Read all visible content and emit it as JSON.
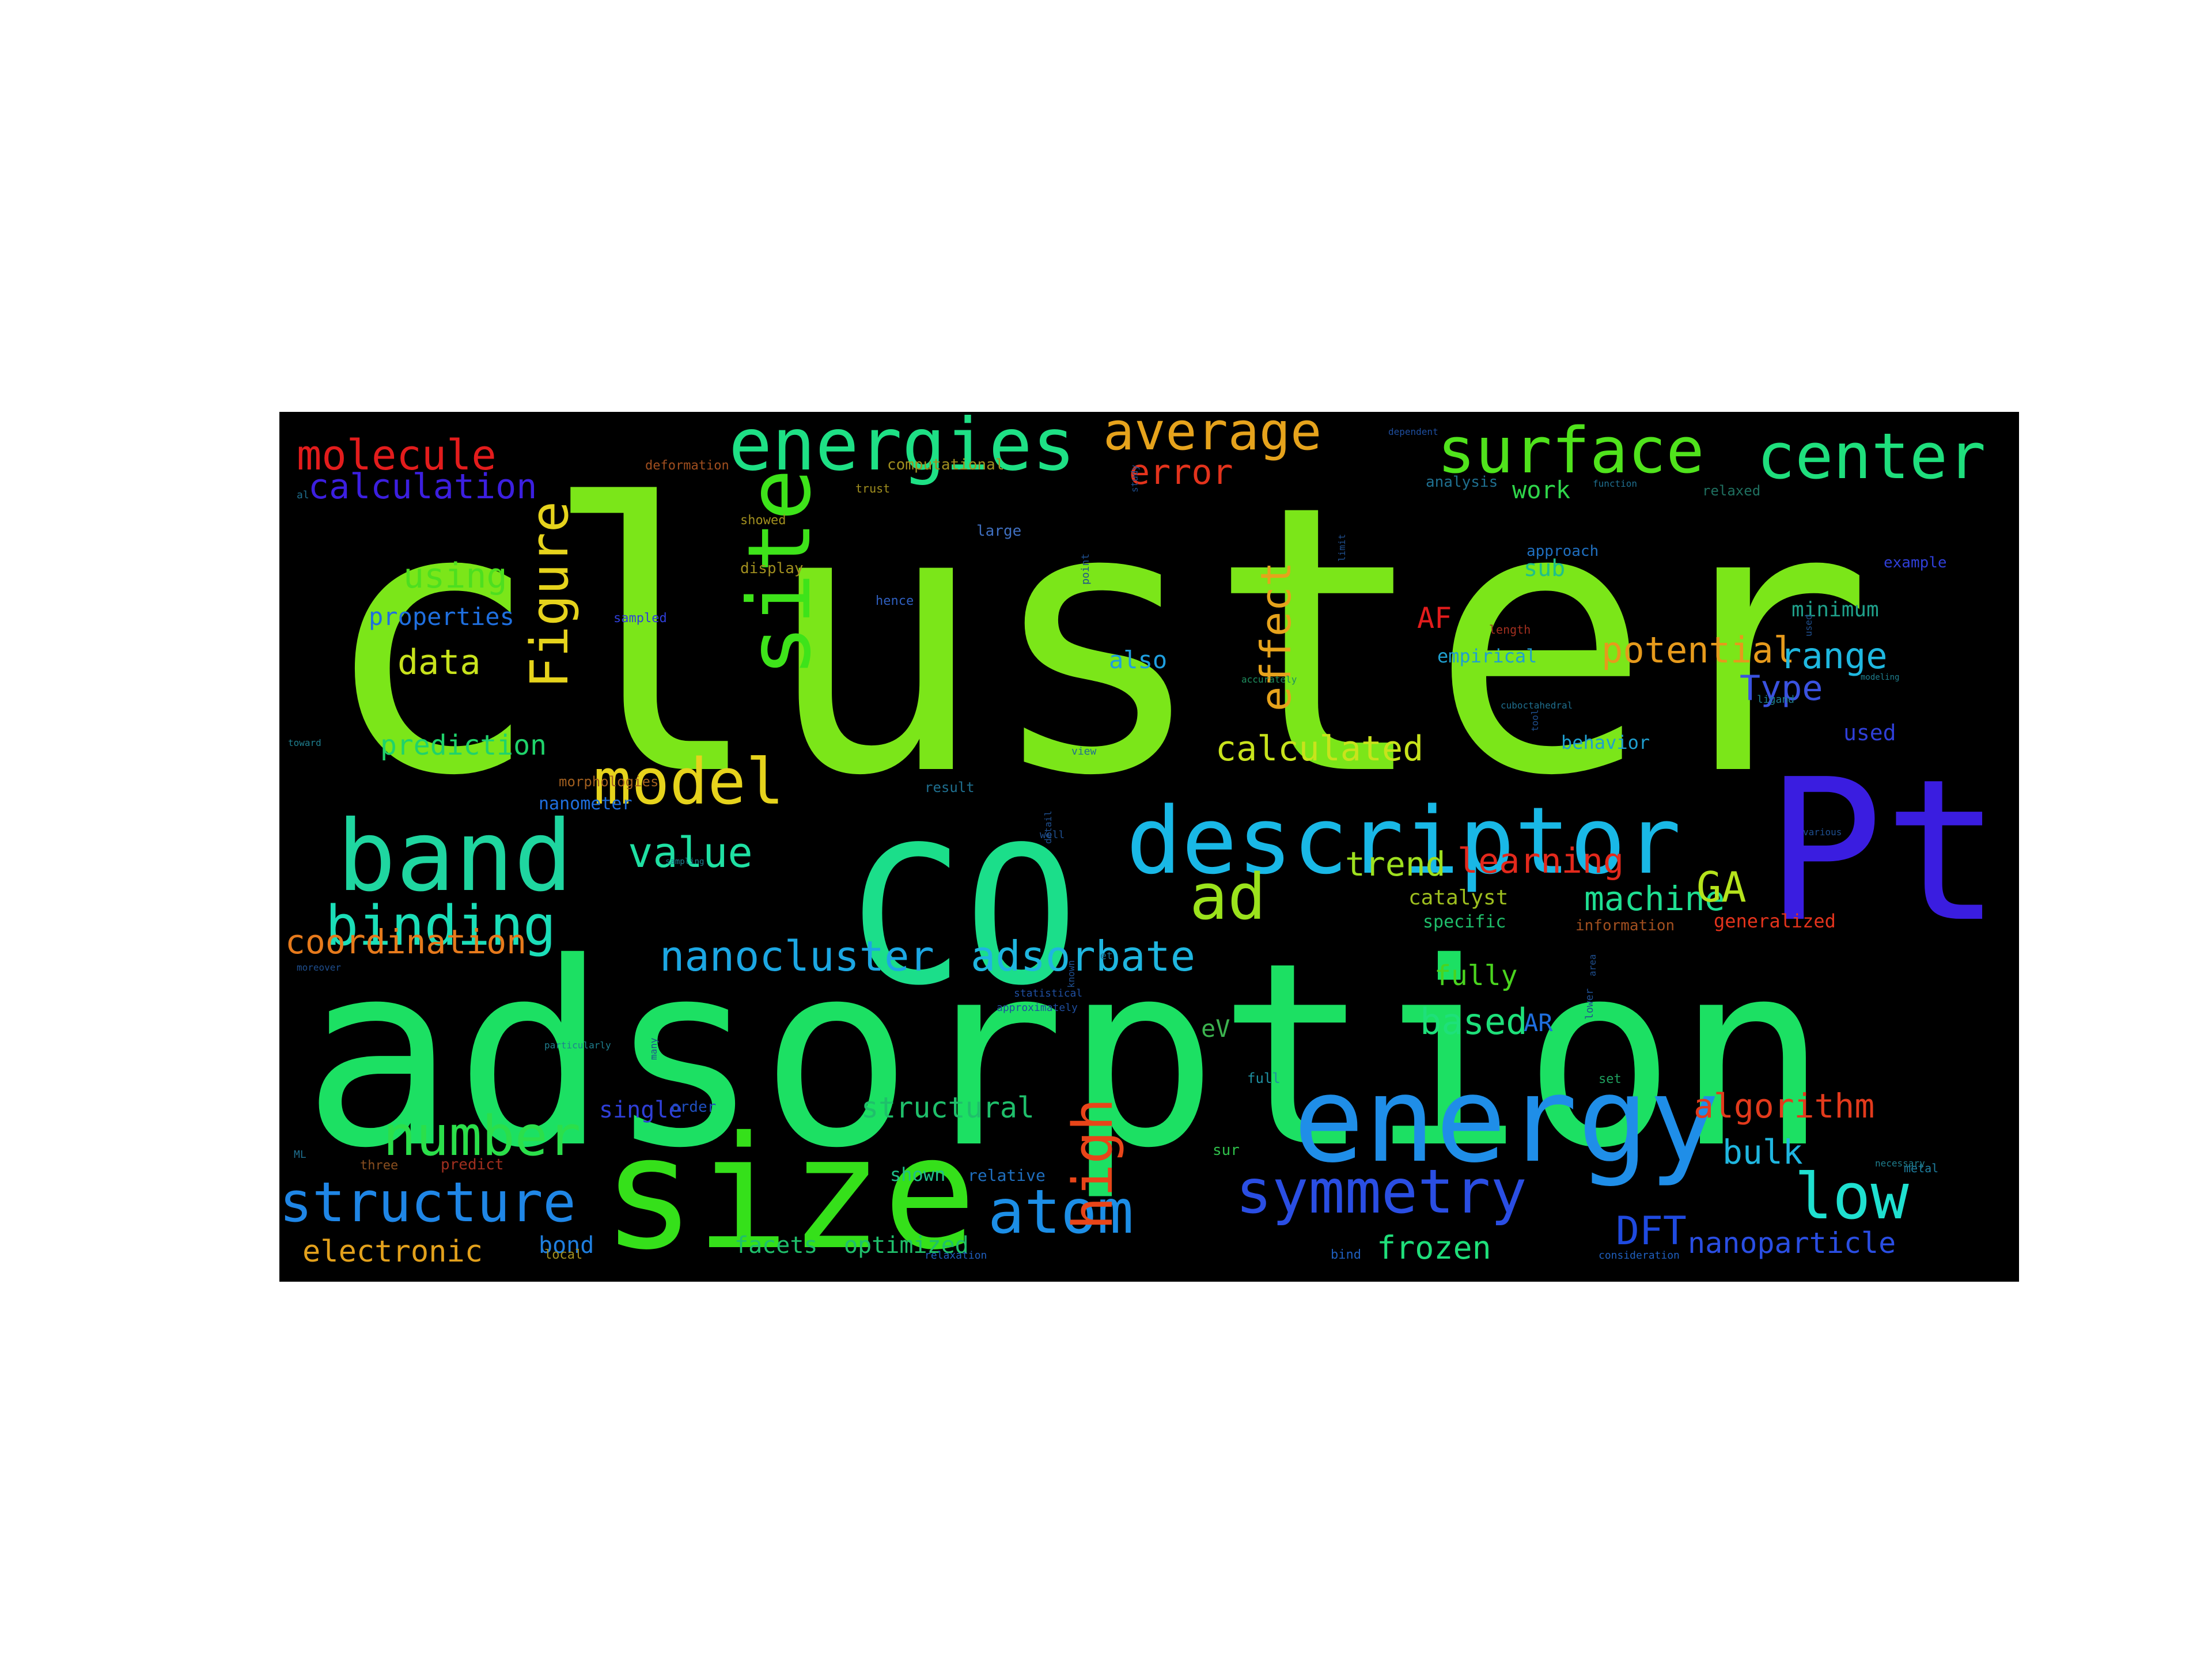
{
  "colors": {
    "background": "#000000",
    "page": "#ffffff"
  },
  "words": [
    {
      "text": "cluster",
      "color": "#7be619"
    },
    {
      "text": "adsorption",
      "color": "#1ce063"
    },
    {
      "text": "CO",
      "color": "#1bde8a"
    },
    {
      "text": "Pt",
      "color": "#3a1de0"
    },
    {
      "text": "size",
      "color": "#35e01a"
    },
    {
      "text": "energy",
      "color": "#1f8ee8"
    },
    {
      "text": "descriptor",
      "color": "#19b8e6"
    },
    {
      "text": "band",
      "color": "#1fd6a0"
    },
    {
      "text": "energies",
      "color": "#1ee085"
    },
    {
      "text": "site",
      "color": "#3ee31a"
    },
    {
      "text": "surface",
      "color": "#50e31c"
    },
    {
      "text": "center",
      "color": "#1fdf7d"
    },
    {
      "text": "average",
      "color": "#e6a31c"
    },
    {
      "text": "model",
      "color": "#e6d31c"
    },
    {
      "text": "ad",
      "color": "#9be31c"
    },
    {
      "text": "binding",
      "color": "#1bdeb8"
    },
    {
      "text": "atom",
      "color": "#1c8ee6"
    },
    {
      "text": "symmetry",
      "color": "#2a4ee3"
    },
    {
      "text": "low",
      "color": "#1fe0d0"
    },
    {
      "text": "structure",
      "color": "#1f86e6"
    },
    {
      "text": "number",
      "color": "#2bdf4a"
    },
    {
      "text": "nanocluster",
      "color": "#1ca7e3"
    },
    {
      "text": "adsorbate",
      "color": "#1fb6e0"
    },
    {
      "text": "Figure",
      "color": "#e6d31c"
    },
    {
      "text": "high",
      "color": "#e84519"
    },
    {
      "text": "effect",
      "color": "#e6a31c"
    },
    {
      "text": "molecule",
      "color": "#e31c1c"
    },
    {
      "text": "calculation",
      "color": "#3c1fe0"
    },
    {
      "text": "error",
      "color": "#e3331c"
    },
    {
      "text": "using",
      "color": "#4ddf1f"
    },
    {
      "text": "properties",
      "color": "#1f6fdf"
    },
    {
      "text": "data",
      "color": "#c8e31c"
    },
    {
      "text": "prediction",
      "color": "#1fd36b"
    },
    {
      "text": "value",
      "color": "#1fe0a3"
    },
    {
      "text": "coordination",
      "color": "#e67a1c"
    },
    {
      "text": "potential",
      "color": "#e69a1c"
    },
    {
      "text": "range",
      "color": "#1fb8e0"
    },
    {
      "text": "Type",
      "color": "#3a52e0"
    },
    {
      "text": "calculated",
      "color": "#c8e31c"
    },
    {
      "text": "learning",
      "color": "#e3291c"
    },
    {
      "text": "machine",
      "color": "#1fdf92"
    },
    {
      "text": "GA",
      "color": "#b5e31c"
    },
    {
      "text": "trend",
      "color": "#9ee01f"
    },
    {
      "text": "based",
      "color": "#1ee07a"
    },
    {
      "text": "fully",
      "color": "#4ad41f"
    },
    {
      "text": "AR",
      "color": "#1f6fdf"
    },
    {
      "text": "eV",
      "color": "#3cb34f"
    },
    {
      "text": "algorithm",
      "color": "#e33a1c"
    },
    {
      "text": "bulk",
      "color": "#1fb6e0"
    },
    {
      "text": "DFT",
      "color": "#1f4ae0"
    },
    {
      "text": "nanoparticle",
      "color": "#2a4ee3"
    },
    {
      "text": "structural",
      "color": "#1fbf6b"
    },
    {
      "text": "electronic",
      "color": "#e3a11c"
    },
    {
      "text": "frozen",
      "color": "#1fdf7a"
    },
    {
      "text": "facets",
      "color": "#1fbf6b"
    },
    {
      "text": "optimized",
      "color": "#1fbf6b"
    },
    {
      "text": "bond",
      "color": "#1f7fdf"
    },
    {
      "text": "single",
      "color": "#2f3fd8"
    },
    {
      "text": "also",
      "color": "#1f9fdf"
    },
    {
      "text": "AF",
      "color": "#e31c1c"
    },
    {
      "text": "work",
      "color": "#2fd64a"
    },
    {
      "text": "sub",
      "color": "#1fc08a"
    },
    {
      "text": "minimum",
      "color": "#1fa08a"
    },
    {
      "text": "empirical",
      "color": "#1f9fcf"
    },
    {
      "text": "behavior",
      "color": "#1f9fcf"
    },
    {
      "text": "used",
      "color": "#2f3fd8"
    },
    {
      "text": "catalyst",
      "color": "#9ebf1f"
    },
    {
      "text": "specific",
      "color": "#1fbf6b"
    },
    {
      "text": "generalized",
      "color": "#e3331c"
    },
    {
      "text": "information",
      "color": "#a14f1f"
    },
    {
      "text": "nanometer",
      "color": "#1f6fdf"
    },
    {
      "text": "shown",
      "color": "#1fbf8a"
    },
    {
      "text": "relative",
      "color": "#1f6fbf"
    },
    {
      "text": "predict",
      "color": "#a12f1f"
    },
    {
      "text": "three",
      "color": "#8a4f1f"
    },
    {
      "text": "order",
      "color": "#1f4fbf"
    },
    {
      "text": "sur",
      "color": "#2fbf4a"
    },
    {
      "text": "full",
      "color": "#1f8fa0"
    },
    {
      "text": "bind",
      "color": "#1f5fbf"
    },
    {
      "text": "local",
      "color": "#a18f1f"
    },
    {
      "text": "relaxation",
      "color": "#1f5fbf"
    },
    {
      "text": "consideration",
      "color": "#1f5fbf"
    },
    {
      "text": "metal",
      "color": "#1f7fa0"
    },
    {
      "text": "set",
      "color": "#1fa05f"
    },
    {
      "text": "deformation",
      "color": "#a14f1f"
    },
    {
      "text": "computational",
      "color": "#a18f1f"
    },
    {
      "text": "showed",
      "color": "#a18f1f"
    },
    {
      "text": "display",
      "color": "#a18f1f"
    },
    {
      "text": "trust",
      "color": "#a18f1f"
    },
    {
      "text": "large",
      "color": "#3f6fbf"
    },
    {
      "text": "hence",
      "color": "#2f5fbf"
    },
    {
      "text": "sampled",
      "color": "#2f3fd8"
    },
    {
      "text": "result",
      "color": "#1f6f8f"
    },
    {
      "text": "view",
      "color": "#1f6f8f"
    },
    {
      "text": "morphologies",
      "color": "#a15f1f"
    },
    {
      "text": "accurately",
      "color": "#1f8f5f"
    },
    {
      "text": "cuboctahedral",
      "color": "#1f6f8f"
    },
    {
      "text": "approach",
      "color": "#1f6fbf"
    },
    {
      "text": "analysis",
      "color": "#1f6f8f"
    },
    {
      "text": "relaxed",
      "color": "#1f6f5f"
    },
    {
      "text": "function",
      "color": "#1f6f8f"
    },
    {
      "text": "dependent",
      "color": "#1f4fa0"
    },
    {
      "text": "length",
      "color": "#a12f1f"
    },
    {
      "text": "ligand",
      "color": "#1f7f8f"
    },
    {
      "text": "modeling",
      "color": "#1f7f8f"
    },
    {
      "text": "example",
      "color": "#2f3fd8"
    },
    {
      "text": "various",
      "color": "#1f4f8f"
    },
    {
      "text": "toward",
      "color": "#1f7f8f"
    },
    {
      "text": "sampling",
      "color": "#1f7f8f"
    },
    {
      "text": "particularly",
      "color": "#1f7f8f"
    },
    {
      "text": "approximately",
      "color": "#1f4fa0"
    },
    {
      "text": "statistical",
      "color": "#1f4fa0"
    },
    {
      "text": "necessary",
      "color": "#1f7f8f"
    },
    {
      "text": "et",
      "color": "#1f6f8f"
    },
    {
      "text": "al",
      "color": "#1f6f8f"
    },
    {
      "text": "ML",
      "color": "#1f6f8f"
    },
    {
      "text": "well",
      "color": "#1f4f8f"
    },
    {
      "text": "point",
      "color": "#1f4f8f"
    },
    {
      "text": "lower",
      "color": "#1f4f8f"
    },
    {
      "text": "limit",
      "color": "#1f4f8f"
    },
    {
      "text": "study",
      "color": "#1f4f8f"
    },
    {
      "text": "many",
      "color": "#1f4f8f"
    },
    {
      "text": "detail",
      "color": "#1f4f8f"
    },
    {
      "text": "known",
      "color": "#1f4f8f"
    },
    {
      "text": "used",
      "color": "#1f4f8f"
    },
    {
      "text": "tool",
      "color": "#1f4f8f"
    },
    {
      "text": "area",
      "color": "#1f4f8f"
    },
    {
      "text": "moreover",
      "color": "#1f4f8f"
    }
  ]
}
